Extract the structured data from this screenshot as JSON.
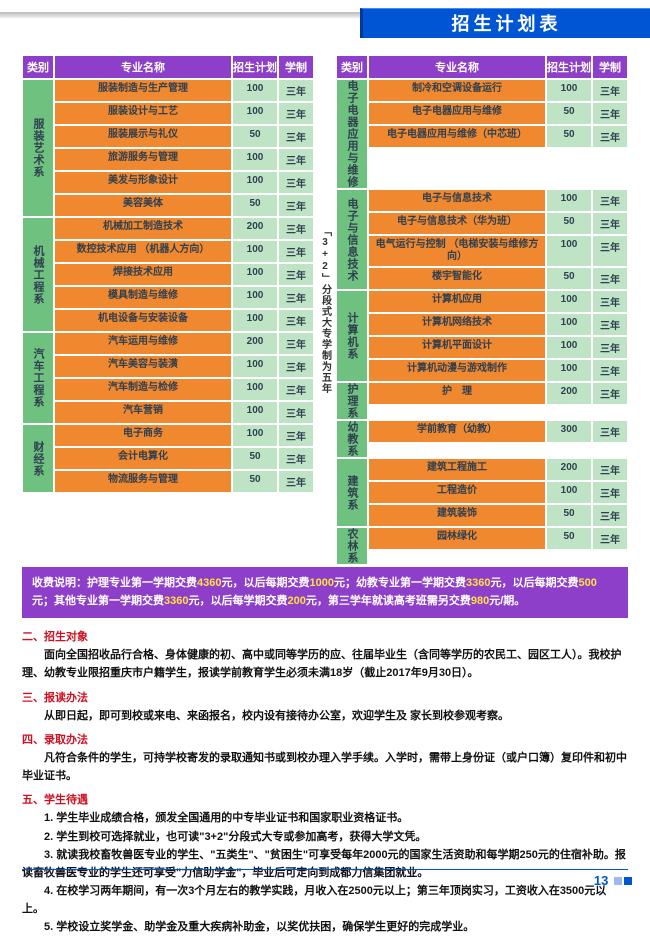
{
  "header": {
    "title": "招生计划表"
  },
  "thead": {
    "c1": "类别",
    "c2": "专业名称",
    "c3": "招生计划",
    "c4": "学制"
  },
  "vnote": "「3+2」分段式大专学制为五年",
  "left": [
    {
      "cat": "服装艺术系",
      "rows": [
        {
          "n": "服装制造与生产管理",
          "p": "100",
          "d": "三年"
        },
        {
          "n": "服装设计与工艺",
          "p": "100",
          "d": "三年"
        },
        {
          "n": "服装展示与礼仪",
          "p": "50",
          "d": "三年"
        },
        {
          "n": "旅游服务与管理",
          "p": "100",
          "d": "三年"
        },
        {
          "n": "美发与形象设计",
          "p": "100",
          "d": "三年"
        },
        {
          "n": "美容美体",
          "p": "50",
          "d": "三年"
        }
      ]
    },
    {
      "cat": "机械工程系",
      "rows": [
        {
          "n": "机械加工制造技术",
          "p": "200",
          "d": "三年"
        },
        {
          "n": "数控技术应用\n（机器人方向）",
          "p": "100",
          "d": "三年"
        },
        {
          "n": "焊接技术应用",
          "p": "100",
          "d": "三年"
        },
        {
          "n": "模具制造与维修",
          "p": "100",
          "d": "三年"
        },
        {
          "n": "机电设备与安装设备",
          "p": "100",
          "d": "三年"
        }
      ]
    },
    {
      "cat": "汽车工程系",
      "rows": [
        {
          "n": "汽车运用与维修",
          "p": "200",
          "d": "三年"
        },
        {
          "n": "汽车美容与装潢",
          "p": "100",
          "d": "三年"
        },
        {
          "n": "汽车制造与检修",
          "p": "100",
          "d": "三年"
        },
        {
          "n": "汽车营销",
          "p": "100",
          "d": "三年"
        }
      ]
    },
    {
      "cat": "财经系",
      "rows": [
        {
          "n": "电子商务",
          "p": "100",
          "d": "三年"
        },
        {
          "n": "会计电算化",
          "p": "50",
          "d": "三年"
        },
        {
          "n": "物流服务与管理",
          "p": "50",
          "d": "三年"
        }
      ]
    }
  ],
  "right": [
    {
      "cat": "电子电器应用与维修",
      "rows": [
        {
          "n": "制冷和空调设备运行",
          "p": "100",
          "d": "三年"
        },
        {
          "n": "电子电器应用与维修",
          "p": "50",
          "d": "三年"
        },
        {
          "n": "电子电器应用与维修（中芯班）",
          "p": "50",
          "d": "三年"
        }
      ]
    },
    {
      "cat": "电子与信息技术",
      "rows": [
        {
          "n": "电子与信息技术",
          "p": "100",
          "d": "三年"
        },
        {
          "n": "电子与信息技术（华为班）",
          "p": "50",
          "d": "三年"
        },
        {
          "n": "电气运行与控制\n（电梯安装与维修方向）",
          "p": "100",
          "d": "三年"
        },
        {
          "n": "楼宇智能化",
          "p": "50",
          "d": "三年"
        }
      ]
    },
    {
      "cat": "计算机系",
      "rows": [
        {
          "n": "计算机应用",
          "p": "100",
          "d": "三年"
        },
        {
          "n": "计算机网络技术",
          "p": "100",
          "d": "三年"
        },
        {
          "n": "计算机平面设计",
          "p": "100",
          "d": "三年"
        },
        {
          "n": "计算机动漫与游戏制作",
          "p": "100",
          "d": "三年"
        }
      ]
    },
    {
      "cat": "护理系",
      "rows": [
        {
          "n": "护　理",
          "p": "200",
          "d": "三年"
        }
      ]
    },
    {
      "cat": "幼教系",
      "rows": [
        {
          "n": "学前教育（幼教）",
          "p": "300",
          "d": "三年"
        }
      ]
    },
    {
      "cat": "建筑系",
      "rows": [
        {
          "n": "建筑工程施工",
          "p": "200",
          "d": "三年"
        },
        {
          "n": "工程造价",
          "p": "100",
          "d": "三年"
        },
        {
          "n": "建筑装饰",
          "p": "50",
          "d": "三年"
        }
      ]
    },
    {
      "cat": "农林系",
      "rows": [
        {
          "n": "园林绿化",
          "p": "50",
          "d": "三年"
        }
      ]
    }
  ],
  "fee": {
    "p1a": "收费说明：护理专业第一学期交费",
    "p1b": "元，以后每期交费",
    "p1c": "元；幼教专业第一学期交费",
    "p1d": "元，以后每期交费",
    "p1e": "元；其他专业第一学期交费",
    "p1f": "元，以后每学期交费",
    "p1g": "元，第三学年就读高考班需另交费",
    "p1h": "元/期。",
    "v1": "4360",
    "v2": "1000",
    "v3": "3360",
    "v4": "500",
    "v5": "3360",
    "v6": "200",
    "v7": "980"
  },
  "sections": {
    "s2h": "二、招生对象",
    "s2b": "面向全国招收品行合格、身体健康的初、高中或同等学历的应、往届毕业生（含同等学历的农民工、园区工人）。我校护理、幼教专业限招重庆市户籍学生，报读学前教育学生必须未满18岁（截止2017年9月30日）。",
    "s3h": "三、报读办法",
    "s3b": "从即日起，即可到校或来电、来函报名，校内设有接待办公室，欢迎学生及 家长到校参观考察。",
    "s4h": "四、录取办法",
    "s4b": "凡符合条件的学生，可持学校寄发的录取通知书或到校办理入学手续。入学时，需带上身份证（或户口簿）复印件和初中毕业证书。",
    "s5h": "五、学生待遇",
    "s5_1": "1. 学生毕业成绩合格，颁发全国通用的中专毕业证书和国家职业资格证书。",
    "s5_2": "2. 学生到校可选择就业，也可读\"3+2\"分段式大专或参加高考，获得大学文凭。",
    "s5_3": "3. 就读我校畜牧兽医专业的学生、\"五类生\"、\"贫困生\"可享受每年2000元的国家生活资助和每学期250元的住宿补助。报读畜牧兽医专业的学生还可享受\"力信助学金\"，毕业后可定向到成都力信集团就业。",
    "s5_4": "4. 在校学习两年期间，有一次3个月左右的教学实践，月收入在2500元以上；第三年顶岗实习，工资收入在3500元以上。",
    "s5_5": "5. 学校设立奖学金、助学金及重大疾病补助金，以奖优扶困，确保学生更好的完成学业。"
  },
  "page": "13"
}
